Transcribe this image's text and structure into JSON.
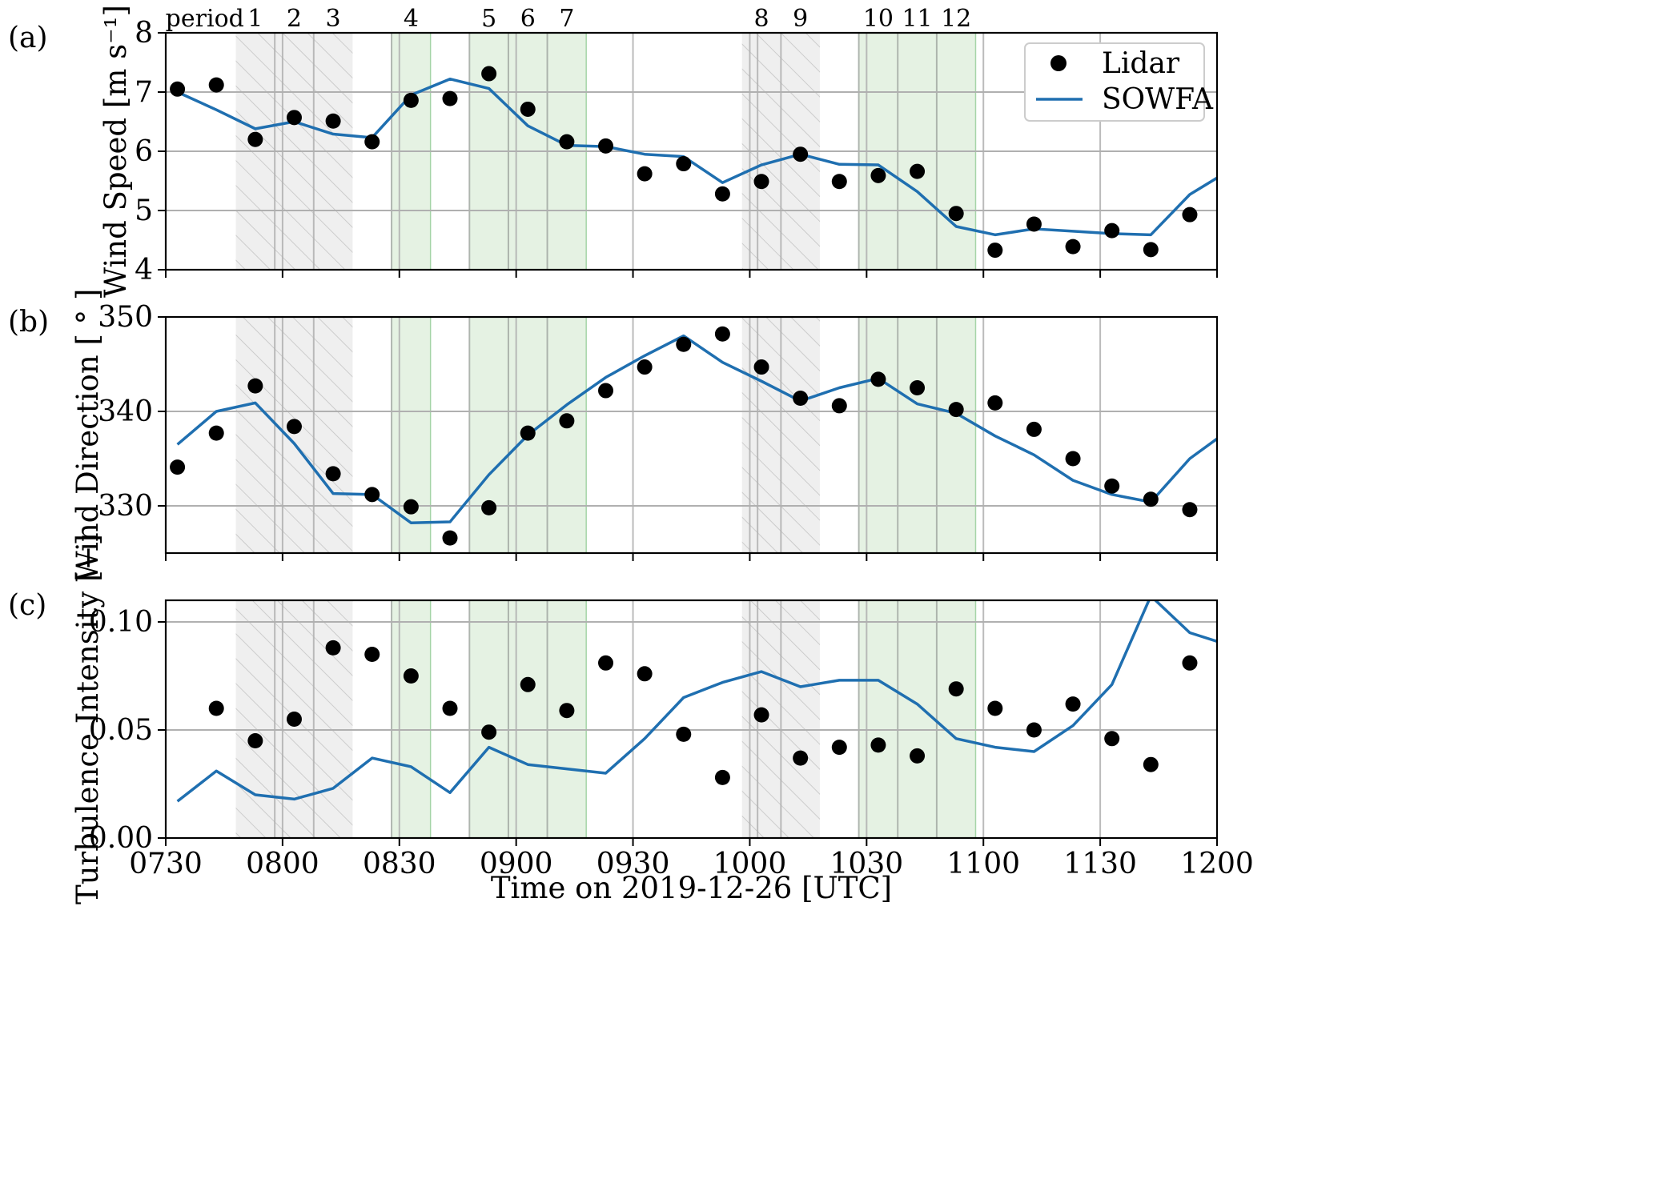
{
  "colors": {
    "model_line": "#1f6fb0",
    "lidar_marker": "#000000",
    "shade_gray": "#e6e6e6",
    "shade_green": "#d3ead1",
    "green_edge": "#86c78a",
    "grid": "#b0b0b0"
  },
  "figure": {
    "xlabel": "Time on 2019-12-26 [UTC]"
  },
  "period_prefix": "period",
  "legend": {
    "lidar": "Lidar",
    "sowfa": "SOWFA"
  },
  "chart_data": [
    {
      "panel": "(a)",
      "type": "line",
      "ylabel": "Wind Speed [m s⁻¹]",
      "ylim": [
        4,
        8
      ],
      "yticks": [
        "4",
        "5",
        "6",
        "7",
        "8"
      ],
      "yticks_values": [
        4,
        5,
        6,
        7,
        8
      ],
      "lidar": [
        7.05,
        7.12,
        6.2,
        6.57,
        6.51,
        6.16,
        6.86,
        6.89,
        7.31,
        6.71,
        6.16,
        6.09,
        5.62,
        5.79,
        5.28,
        5.49,
        5.95,
        5.49,
        5.59,
        5.66,
        4.95,
        4.33,
        4.77,
        4.39,
        4.66,
        4.34,
        4.93
      ],
      "sowfa": [
        7.0,
        6.7,
        6.38,
        6.5,
        6.29,
        6.23,
        6.95,
        7.22,
        7.06,
        6.43,
        6.1,
        6.08,
        5.95,
        5.91,
        5.47,
        5.77,
        5.95,
        5.78,
        5.77,
        5.32,
        4.73,
        4.59,
        4.69,
        4.65,
        4.61,
        4.59,
        5.27,
        5.55
      ]
    },
    {
      "panel": "(b)",
      "type": "line",
      "ylabel": "Wind Direction [ ° ]",
      "ylim": [
        325,
        350
      ],
      "yticks": [
        "330",
        "340",
        "350"
      ],
      "yticks_values": [
        330,
        340,
        350
      ],
      "lidar": [
        334.1,
        337.7,
        342.7,
        338.4,
        333.4,
        331.2,
        329.9,
        326.6,
        329.8,
        337.7,
        339.0,
        342.2,
        344.7,
        347.1,
        348.2,
        344.7,
        341.4,
        340.6,
        343.4,
        342.5,
        340.2,
        340.9,
        338.1,
        335.0,
        332.1,
        330.7,
        329.6
      ],
      "sowfa": [
        336.5,
        340.0,
        340.9,
        336.6,
        331.3,
        331.2,
        328.2,
        328.3,
        333.3,
        337.5,
        340.7,
        343.6,
        345.9,
        348.0,
        345.2,
        343.2,
        341.1,
        342.5,
        343.5,
        340.8,
        339.8,
        337.4,
        335.4,
        332.7,
        331.2,
        330.4,
        335.0,
        337.1
      ]
    },
    {
      "panel": "(c)",
      "type": "line",
      "ylabel": "Turbulence Intensity [−]",
      "ylim": [
        0.0,
        0.11
      ],
      "yticks": [
        "0.00",
        "0.05",
        "0.10"
      ],
      "yticks_values": [
        0.0,
        0.05,
        0.1
      ],
      "lidar": [
        null,
        0.06,
        0.045,
        0.055,
        0.088,
        0.085,
        0.075,
        0.06,
        0.049,
        0.071,
        0.059,
        0.081,
        0.076,
        0.048,
        0.028,
        0.057,
        0.037,
        0.042,
        0.043,
        0.038,
        0.069,
        0.06,
        0.05,
        0.062,
        0.046,
        0.034,
        0.081
      ],
      "sowfa": [
        0.017,
        0.031,
        0.02,
        0.018,
        0.023,
        0.037,
        0.033,
        0.021,
        0.042,
        0.034,
        0.032,
        0.03,
        0.046,
        0.065,
        0.072,
        0.077,
        0.07,
        0.073,
        0.073,
        0.062,
        0.046,
        0.042,
        0.04,
        0.052,
        0.071,
        0.112,
        0.095,
        0.091
      ]
    }
  ],
  "shared_axis": {
    "x_minutes_range": [
      450,
      720
    ],
    "xticks": [
      "0730",
      "0800",
      "0830",
      "0900",
      "0930",
      "1000",
      "1030",
      "1100",
      "1130",
      "1200"
    ],
    "xticks_minutes": [
      450,
      480,
      510,
      540,
      570,
      600,
      630,
      660,
      690,
      720
    ],
    "lidar_times_minutes": [
      453,
      463,
      473,
      483,
      493,
      503,
      513,
      523,
      533,
      543,
      553,
      563,
      573,
      583,
      593,
      603,
      613,
      623,
      633,
      643,
      653,
      663,
      673,
      683,
      693,
      703,
      713
    ],
    "sowfa_times_minutes": [
      453,
      463,
      473,
      483,
      493,
      503,
      513,
      523,
      533,
      543,
      553,
      563,
      573,
      583,
      593,
      603,
      613,
      623,
      633,
      643,
      653,
      663,
      673,
      683,
      693,
      703,
      713,
      720
    ],
    "vertical_lines_minutes": [
      478,
      480,
      488,
      508,
      510,
      528,
      538,
      540,
      548,
      570,
      600,
      602,
      608,
      628,
      630,
      638,
      648,
      660,
      690
    ],
    "shaded_periods": [
      {
        "label": "1",
        "start": 468,
        "end": 478,
        "style": "gray-hatched"
      },
      {
        "label": "2",
        "start": 478,
        "end": 488,
        "style": "gray-hatched"
      },
      {
        "label": "3",
        "start": 488,
        "end": 498,
        "style": "gray-hatched"
      },
      {
        "label": "4",
        "start": 508,
        "end": 518,
        "style": "green"
      },
      {
        "label": "5",
        "start": 528,
        "end": 538,
        "style": "green"
      },
      {
        "label": "6",
        "start": 538,
        "end": 548,
        "style": "green"
      },
      {
        "label": "7",
        "start": 548,
        "end": 558,
        "style": "green"
      },
      {
        "label": "8",
        "start": 598,
        "end": 608,
        "style": "gray-hatched"
      },
      {
        "label": "9",
        "start": 608,
        "end": 618,
        "style": "gray-hatched"
      },
      {
        "label": "10",
        "start": 628,
        "end": 638,
        "style": "green"
      },
      {
        "label": "11",
        "start": 638,
        "end": 648,
        "style": "green"
      },
      {
        "label": "12",
        "start": 648,
        "end": 658,
        "style": "green"
      }
    ]
  }
}
